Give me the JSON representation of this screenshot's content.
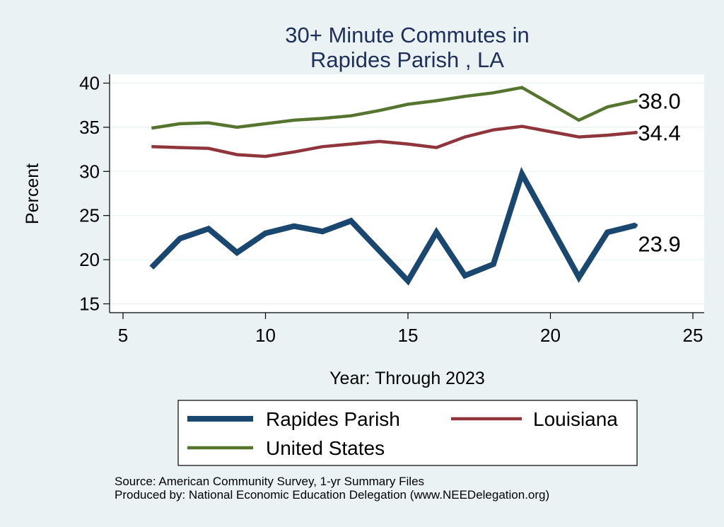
{
  "chart_data": {
    "type": "line",
    "title": [
      "30+ Minute Commutes in",
      "Rapides Parish , LA"
    ],
    "xlabel": "Year: Through 2023",
    "ylabel": "Percent",
    "xlim": [
      5,
      25
    ],
    "ylim": [
      14,
      41
    ],
    "xticks": [
      5,
      10,
      15,
      20,
      25
    ],
    "yticks": [
      15,
      20,
      25,
      30,
      35,
      40
    ],
    "grid": true,
    "legend_position": "bottom",
    "series": [
      {
        "name": "Rapides Parish",
        "color": "#1a476f",
        "x": [
          6,
          7,
          8,
          9,
          10,
          11,
          12,
          13,
          14,
          15,
          16,
          17,
          18,
          19,
          21,
          22,
          23
        ],
        "values": [
          19.1,
          22.4,
          23.5,
          20.8,
          23.0,
          23.8,
          23.2,
          24.4,
          21.0,
          17.6,
          23.1,
          18.2,
          19.5,
          29.7,
          18.0,
          23.1,
          23.9
        ],
        "end_label": "23.9"
      },
      {
        "name": "Louisiana",
        "color": "#90353b",
        "x": [
          6,
          7,
          8,
          9,
          10,
          11,
          12,
          13,
          14,
          15,
          16,
          17,
          18,
          19,
          21,
          22,
          23
        ],
        "values": [
          32.8,
          32.7,
          32.6,
          31.9,
          31.7,
          32.2,
          32.8,
          33.1,
          33.4,
          33.1,
          32.7,
          33.9,
          34.7,
          35.1,
          33.9,
          34.1,
          34.4
        ],
        "end_label": "34.4"
      },
      {
        "name": "United States",
        "color": "#55752f",
        "x": [
          6,
          7,
          8,
          9,
          10,
          11,
          12,
          13,
          14,
          15,
          16,
          17,
          18,
          19,
          21,
          22,
          23
        ],
        "values": [
          34.9,
          35.4,
          35.5,
          35.0,
          35.4,
          35.8,
          36.0,
          36.3,
          36.9,
          37.6,
          38.0,
          38.5,
          38.9,
          39.5,
          35.8,
          37.3,
          38.0
        ],
        "end_label": "38.0"
      }
    ],
    "legend": [
      "Rapides Parish",
      "Louisiana",
      "United States"
    ]
  },
  "footer": {
    "source": "Source: American Community Survey, 1-yr Summary Files",
    "produced": "Produced by: National Economic Education Delegation (www.NEEDelegation.org)"
  }
}
